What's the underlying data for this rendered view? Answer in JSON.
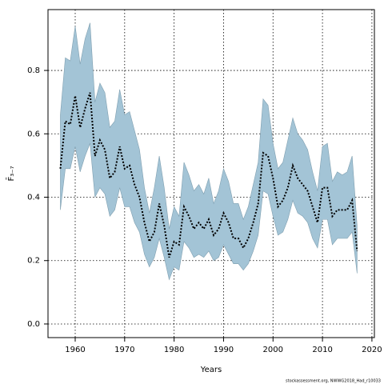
{
  "chart_data": {
    "type": "line",
    "x_label": "Years",
    "y_label": "F̄₃₋₇",
    "footnote": "stockassessment.org, NWWG2018_Had_r10033",
    "x": [
      1957,
      1958,
      1959,
      1960,
      1961,
      1962,
      1963,
      1964,
      1965,
      1966,
      1967,
      1968,
      1969,
      1970,
      1971,
      1972,
      1973,
      1974,
      1975,
      1976,
      1977,
      1978,
      1979,
      1980,
      1981,
      1982,
      1983,
      1984,
      1985,
      1986,
      1987,
      1988,
      1989,
      1990,
      1991,
      1992,
      1993,
      1994,
      1995,
      1996,
      1997,
      1998,
      1999,
      2000,
      2001,
      2002,
      2003,
      2004,
      2005,
      2006,
      2007,
      2008,
      2009,
      2010,
      2011,
      2012,
      2013,
      2014,
      2015,
      2016,
      2017
    ],
    "values": [
      0.49,
      0.64,
      0.63,
      0.72,
      0.62,
      0.68,
      0.73,
      0.53,
      0.58,
      0.55,
      0.46,
      0.48,
      0.56,
      0.49,
      0.5,
      0.44,
      0.4,
      0.32,
      0.26,
      0.29,
      0.38,
      0.31,
      0.21,
      0.26,
      0.25,
      0.37,
      0.34,
      0.3,
      0.32,
      0.3,
      0.33,
      0.28,
      0.3,
      0.35,
      0.32,
      0.27,
      0.27,
      0.24,
      0.27,
      0.32,
      0.38,
      0.54,
      0.53,
      0.46,
      0.37,
      0.39,
      0.43,
      0.5,
      0.46,
      0.44,
      0.42,
      0.37,
      0.32,
      0.43,
      0.43,
      0.34,
      0.36,
      0.36,
      0.36,
      0.39,
      0.23
    ],
    "upper": [
      0.66,
      0.84,
      0.83,
      0.94,
      0.82,
      0.9,
      0.95,
      0.7,
      0.76,
      0.73,
      0.62,
      0.64,
      0.74,
      0.66,
      0.67,
      0.61,
      0.55,
      0.43,
      0.35,
      0.43,
      0.53,
      0.43,
      0.3,
      0.37,
      0.34,
      0.51,
      0.47,
      0.42,
      0.44,
      0.41,
      0.46,
      0.38,
      0.42,
      0.49,
      0.45,
      0.38,
      0.38,
      0.33,
      0.37,
      0.44,
      0.51,
      0.71,
      0.69,
      0.57,
      0.49,
      0.51,
      0.58,
      0.65,
      0.6,
      0.58,
      0.55,
      0.48,
      0.42,
      0.56,
      0.57,
      0.45,
      0.48,
      0.47,
      0.48,
      0.53,
      0.31
    ],
    "lower": [
      0.36,
      0.49,
      0.49,
      0.56,
      0.48,
      0.53,
      0.57,
      0.4,
      0.43,
      0.41,
      0.34,
      0.36,
      0.43,
      0.37,
      0.37,
      0.32,
      0.29,
      0.22,
      0.18,
      0.21,
      0.27,
      0.21,
      0.14,
      0.18,
      0.17,
      0.26,
      0.24,
      0.21,
      0.22,
      0.21,
      0.23,
      0.2,
      0.21,
      0.25,
      0.22,
      0.19,
      0.19,
      0.17,
      0.19,
      0.23,
      0.28,
      0.42,
      0.41,
      0.34,
      0.28,
      0.29,
      0.33,
      0.39,
      0.35,
      0.34,
      0.32,
      0.27,
      0.24,
      0.33,
      0.33,
      0.25,
      0.27,
      0.27,
      0.27,
      0.29,
      0.16
    ],
    "color": "#000000",
    "band_color": "#a3c4d6",
    "xlim": [
      1954.5,
      2020.5
    ],
    "ylim": [
      -0.043,
      0.992
    ],
    "xticks": [
      1960,
      1970,
      1980,
      1990,
      2000,
      2010,
      2020
    ],
    "yticks": [
      {
        "value": 0,
        "label": "0.0"
      },
      {
        "value": 0.2,
        "label": "0.2"
      },
      {
        "value": 0.4,
        "label": "0.4"
      },
      {
        "value": 0.6,
        "label": "0.6"
      },
      {
        "value": 0.8,
        "label": "0.8"
      }
    ],
    "grid": true
  }
}
